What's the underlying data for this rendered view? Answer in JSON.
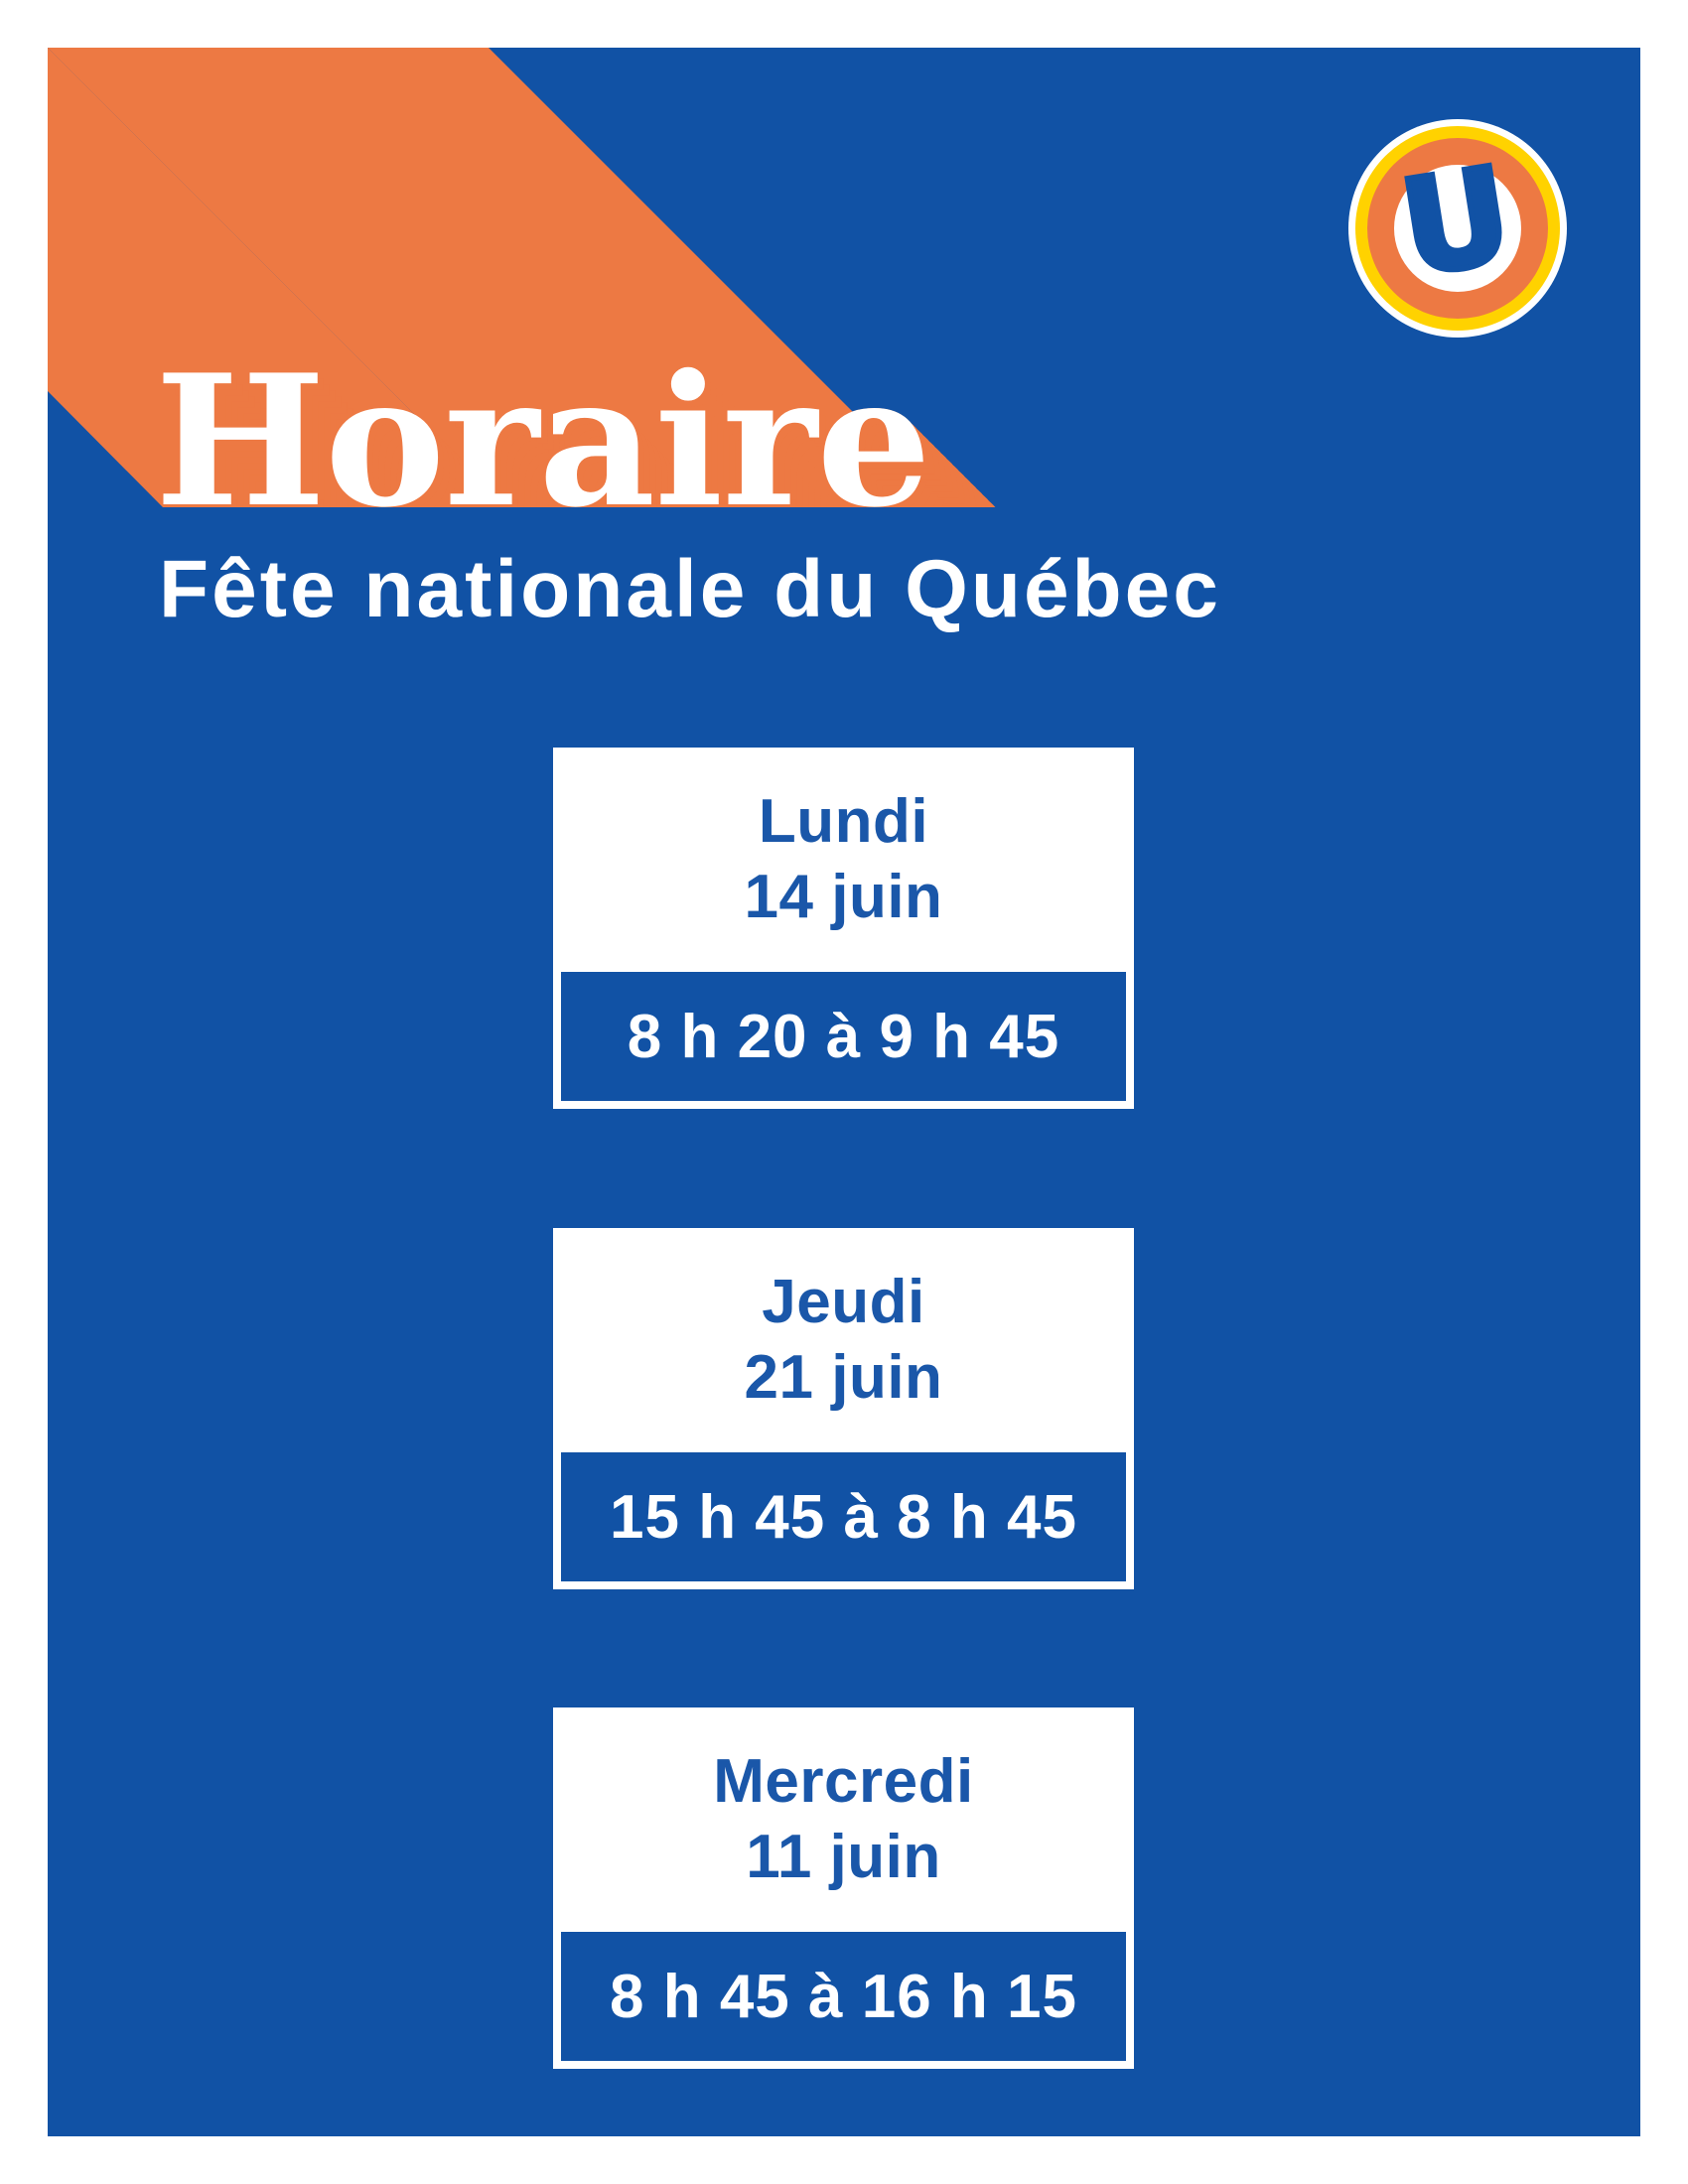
{
  "header": {
    "title": "Horaire",
    "subtitle": "Fête nationale du Québec"
  },
  "logo": {
    "letter": "U"
  },
  "colors": {
    "background_blue": "#1152A5",
    "accent_orange": "#ED7943",
    "logo_yellow": "#FFD200",
    "card_white": "#FFFFFF",
    "day_text_blue": "#1A57A9"
  },
  "schedule": [
    {
      "day": "Lundi",
      "date": "14 juin",
      "time": "8 h 20 à 9 h 45"
    },
    {
      "day": "Jeudi",
      "date": "21 juin",
      "time": "15 h 45 à 8 h 45"
    },
    {
      "day": "Mercredi",
      "date": "11 juin",
      "time": "8 h 45 à 16 h 15"
    }
  ]
}
